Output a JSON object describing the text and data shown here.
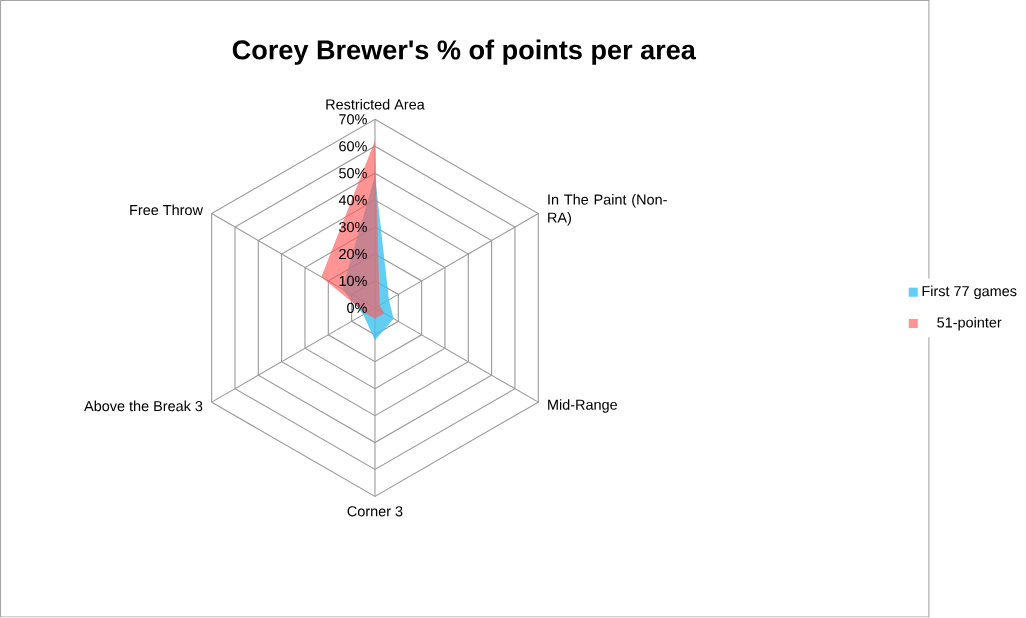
{
  "chart_data": {
    "type": "radar",
    "title": "Corey Brewer's % of points per area",
    "categories": [
      "Restricted Area",
      "In The Paint (Non-RA)",
      "Mid-Range",
      "Corner 3",
      "Above the Break 3",
      "Free Throw"
    ],
    "series": [
      {
        "name": "First 77 games",
        "color": "#3cc0ef",
        "values": [
          49,
          6,
          8,
          12,
          5,
          14
        ]
      },
      {
        "name": "51-pointer",
        "color": "#ff5a5a",
        "values": [
          62,
          2,
          4,
          4,
          4,
          23
        ]
      }
    ],
    "ylim": [
      0,
      70
    ],
    "yticks": [
      {
        "value": 0,
        "label": "0%"
      },
      {
        "value": 10,
        "label": "10%"
      },
      {
        "value": 20,
        "label": "20%"
      },
      {
        "value": 30,
        "label": "30%"
      },
      {
        "value": 40,
        "label": "40%"
      },
      {
        "value": 50,
        "label": "50%"
      },
      {
        "value": 60,
        "label": "60%"
      },
      {
        "value": 70,
        "label": "70%"
      }
    ],
    "grid": true,
    "legend": "right"
  }
}
